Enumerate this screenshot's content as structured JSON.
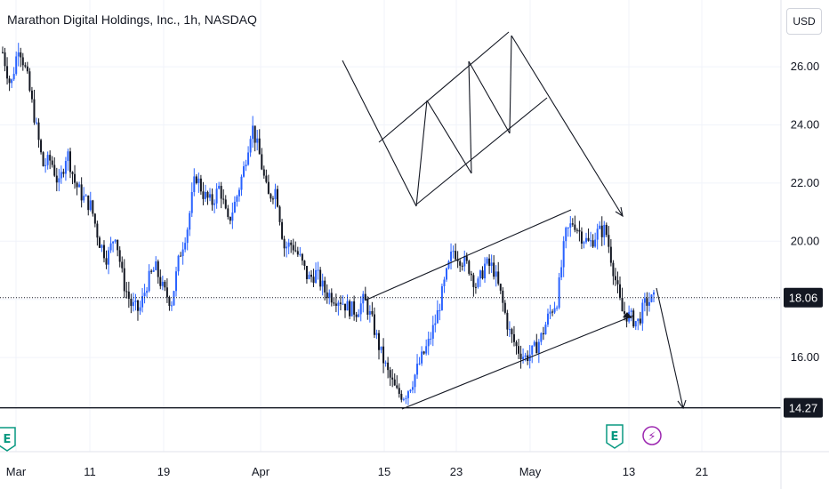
{
  "header": {
    "symbol_title": "Marathon Digital Holdings, Inc., 1h, NASDAQ",
    "currency_button": "USD"
  },
  "price_labels": {
    "current_price": "18.06",
    "support_level": "14.27"
  },
  "event_markers": [
    {
      "type": "earnings",
      "glyph": "E"
    },
    {
      "type": "earnings",
      "glyph": "E"
    },
    {
      "type": "dividend-split",
      "glyph": "⚡"
    }
  ],
  "colors": {
    "up": "#2962ff",
    "down": "#131722",
    "grid": "#f0f3fa",
    "drawing": "#131722",
    "marker_blue": "#089981",
    "marker_purple": "#9c27b0"
  },
  "chart_data": {
    "type": "candlestick",
    "y_axis": {
      "ticks": [
        16,
        18,
        20,
        22,
        24,
        26
      ],
      "ylim": [
        13.4,
        28.2
      ]
    },
    "x_axis": {
      "ticks": [
        "Mar",
        "11",
        "19",
        "Apr",
        "15",
        "23",
        "May",
        "13",
        "21"
      ]
    },
    "series": [
      {
        "name": "",
        "close_path": [
          [
            0,
            26.5
          ],
          [
            2,
            25.3
          ],
          [
            4,
            26.8
          ],
          [
            6,
            25.7
          ],
          [
            8,
            24.2
          ],
          [
            10,
            22.6
          ],
          [
            12,
            22.8
          ],
          [
            14,
            21.9
          ],
          [
            16,
            23.1
          ],
          [
            18,
            22.0
          ],
          [
            20,
            21.5
          ],
          [
            22,
            21.2
          ],
          [
            24,
            20.0
          ],
          [
            26,
            19.4
          ],
          [
            28,
            20.3
          ],
          [
            30,
            18.6
          ],
          [
            32,
            17.8
          ],
          [
            34,
            17.6
          ],
          [
            36,
            18.6
          ],
          [
            38,
            19.1
          ],
          [
            40,
            18.3
          ],
          [
            42,
            17.9
          ],
          [
            44,
            19.5
          ],
          [
            46,
            20.5
          ],
          [
            48,
            22.3
          ],
          [
            50,
            21.6
          ],
          [
            52,
            21.3
          ],
          [
            54,
            21.9
          ],
          [
            56,
            20.6
          ],
          [
            58,
            21.4
          ],
          [
            60,
            22.5
          ],
          [
            62,
            24.0
          ],
          [
            64,
            22.9
          ],
          [
            66,
            21.5
          ],
          [
            68,
            21.8
          ],
          [
            70,
            19.8
          ],
          [
            72,
            19.9
          ],
          [
            74,
            19.4
          ],
          [
            76,
            18.7
          ],
          [
            78,
            18.9
          ],
          [
            80,
            18.3
          ],
          [
            82,
            18.1
          ],
          [
            84,
            18.0
          ],
          [
            86,
            17.7
          ],
          [
            88,
            17.6
          ],
          [
            90,
            18.0
          ],
          [
            92,
            17.2
          ],
          [
            94,
            16.2
          ],
          [
            96,
            15.4
          ],
          [
            98,
            14.8
          ],
          [
            100,
            14.7
          ],
          [
            102,
            15.2
          ],
          [
            104,
            15.9
          ],
          [
            106,
            16.5
          ],
          [
            108,
            17.4
          ],
          [
            110,
            18.6
          ],
          [
            112,
            19.7
          ],
          [
            114,
            19.4
          ],
          [
            116,
            19.1
          ],
          [
            118,
            18.4
          ],
          [
            120,
            19.2
          ],
          [
            122,
            19.1
          ],
          [
            124,
            18.1
          ],
          [
            126,
            16.9
          ],
          [
            128,
            16.3
          ],
          [
            130,
            16.0
          ],
          [
            132,
            16.2
          ],
          [
            134,
            16.7
          ],
          [
            136,
            17.5
          ],
          [
            138,
            18.0
          ],
          [
            140,
            20.2
          ],
          [
            142,
            20.7
          ],
          [
            144,
            20.2
          ],
          [
            146,
            19.9
          ],
          [
            148,
            20.3
          ],
          [
            150,
            20.4
          ],
          [
            152,
            19.0
          ],
          [
            154,
            17.6
          ],
          [
            156,
            17.4
          ],
          [
            158,
            17.2
          ],
          [
            160,
            17.9
          ],
          [
            162,
            18.0
          ]
        ]
      }
    ]
  }
}
